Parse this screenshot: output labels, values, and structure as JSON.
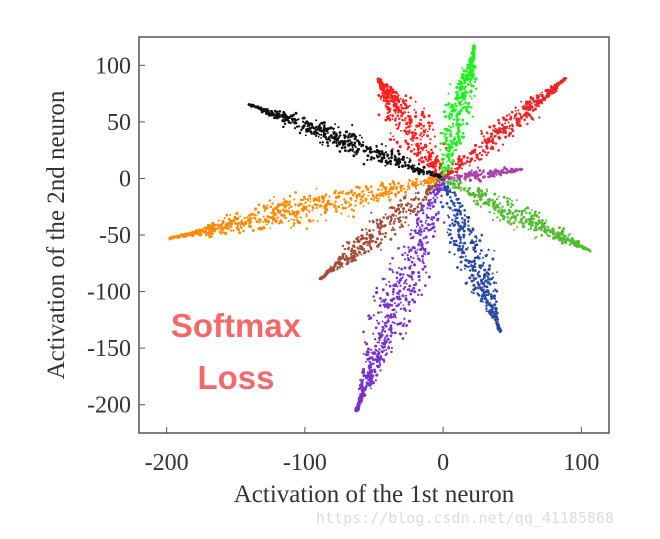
{
  "chart_data": {
    "type": "scatter",
    "title": "",
    "xlabel": "Activation of the 1st neuron",
    "ylabel": "Activation of the 2nd neuron",
    "xlim": [
      -220,
      120
    ],
    "ylim": [
      -225,
      125
    ],
    "xticks": [
      -200,
      -100,
      0,
      100
    ],
    "yticks": [
      100,
      50,
      0,
      -50,
      -100,
      -150,
      -200
    ],
    "grid": false,
    "legend": "none",
    "annotation": {
      "lines": [
        "Softmax",
        "Loss"
      ],
      "color": "#f06a6a"
    },
    "clusters": [
      {
        "color": "#ff2020",
        "tip": [
          -58,
          82
        ],
        "angle_deg": 118,
        "length": 100,
        "width": 14,
        "count": 420
      },
      {
        "color": "#22ee22",
        "tip": [
          22,
          118
        ],
        "angle_deg": 79,
        "length": 120,
        "width": 8,
        "count": 380
      },
      {
        "color": "#e82626",
        "tip": [
          90,
          88
        ],
        "angle_deg": 45,
        "length": 126,
        "width": 8,
        "count": 380
      },
      {
        "color": "#111111",
        "tip": [
          -140,
          64
        ],
        "angle_deg": 155,
        "length": 155,
        "width": 8,
        "count": 500
      },
      {
        "color": "#aa44aa",
        "tip": [
          58,
          10
        ],
        "angle_deg": 8,
        "length": 58,
        "width": 4,
        "count": 160
      },
      {
        "color": "#ff8a00",
        "tip": [
          -198,
          -45
        ],
        "angle_deg": 195,
        "length": 205,
        "width": 11,
        "count": 650
      },
      {
        "color": "#55bb33",
        "tip": [
          108,
          -65
        ],
        "angle_deg": -31,
        "length": 125,
        "width": 9,
        "count": 430
      },
      {
        "color": "#a0503a",
        "tip": [
          -88,
          -93
        ],
        "angle_deg": 225,
        "length": 126,
        "width": 9,
        "count": 380
      },
      {
        "color": "#2a4aa0",
        "tip": [
          42,
          -138
        ],
        "angle_deg": -73,
        "length": 142,
        "width": 10,
        "count": 430
      },
      {
        "color": "#7733cc",
        "tip": [
          -60,
          -208
        ],
        "angle_deg": 253,
        "length": 215,
        "width": 13,
        "count": 620
      }
    ]
  },
  "watermark": "https://blog.csdn.net/qq_41185868"
}
